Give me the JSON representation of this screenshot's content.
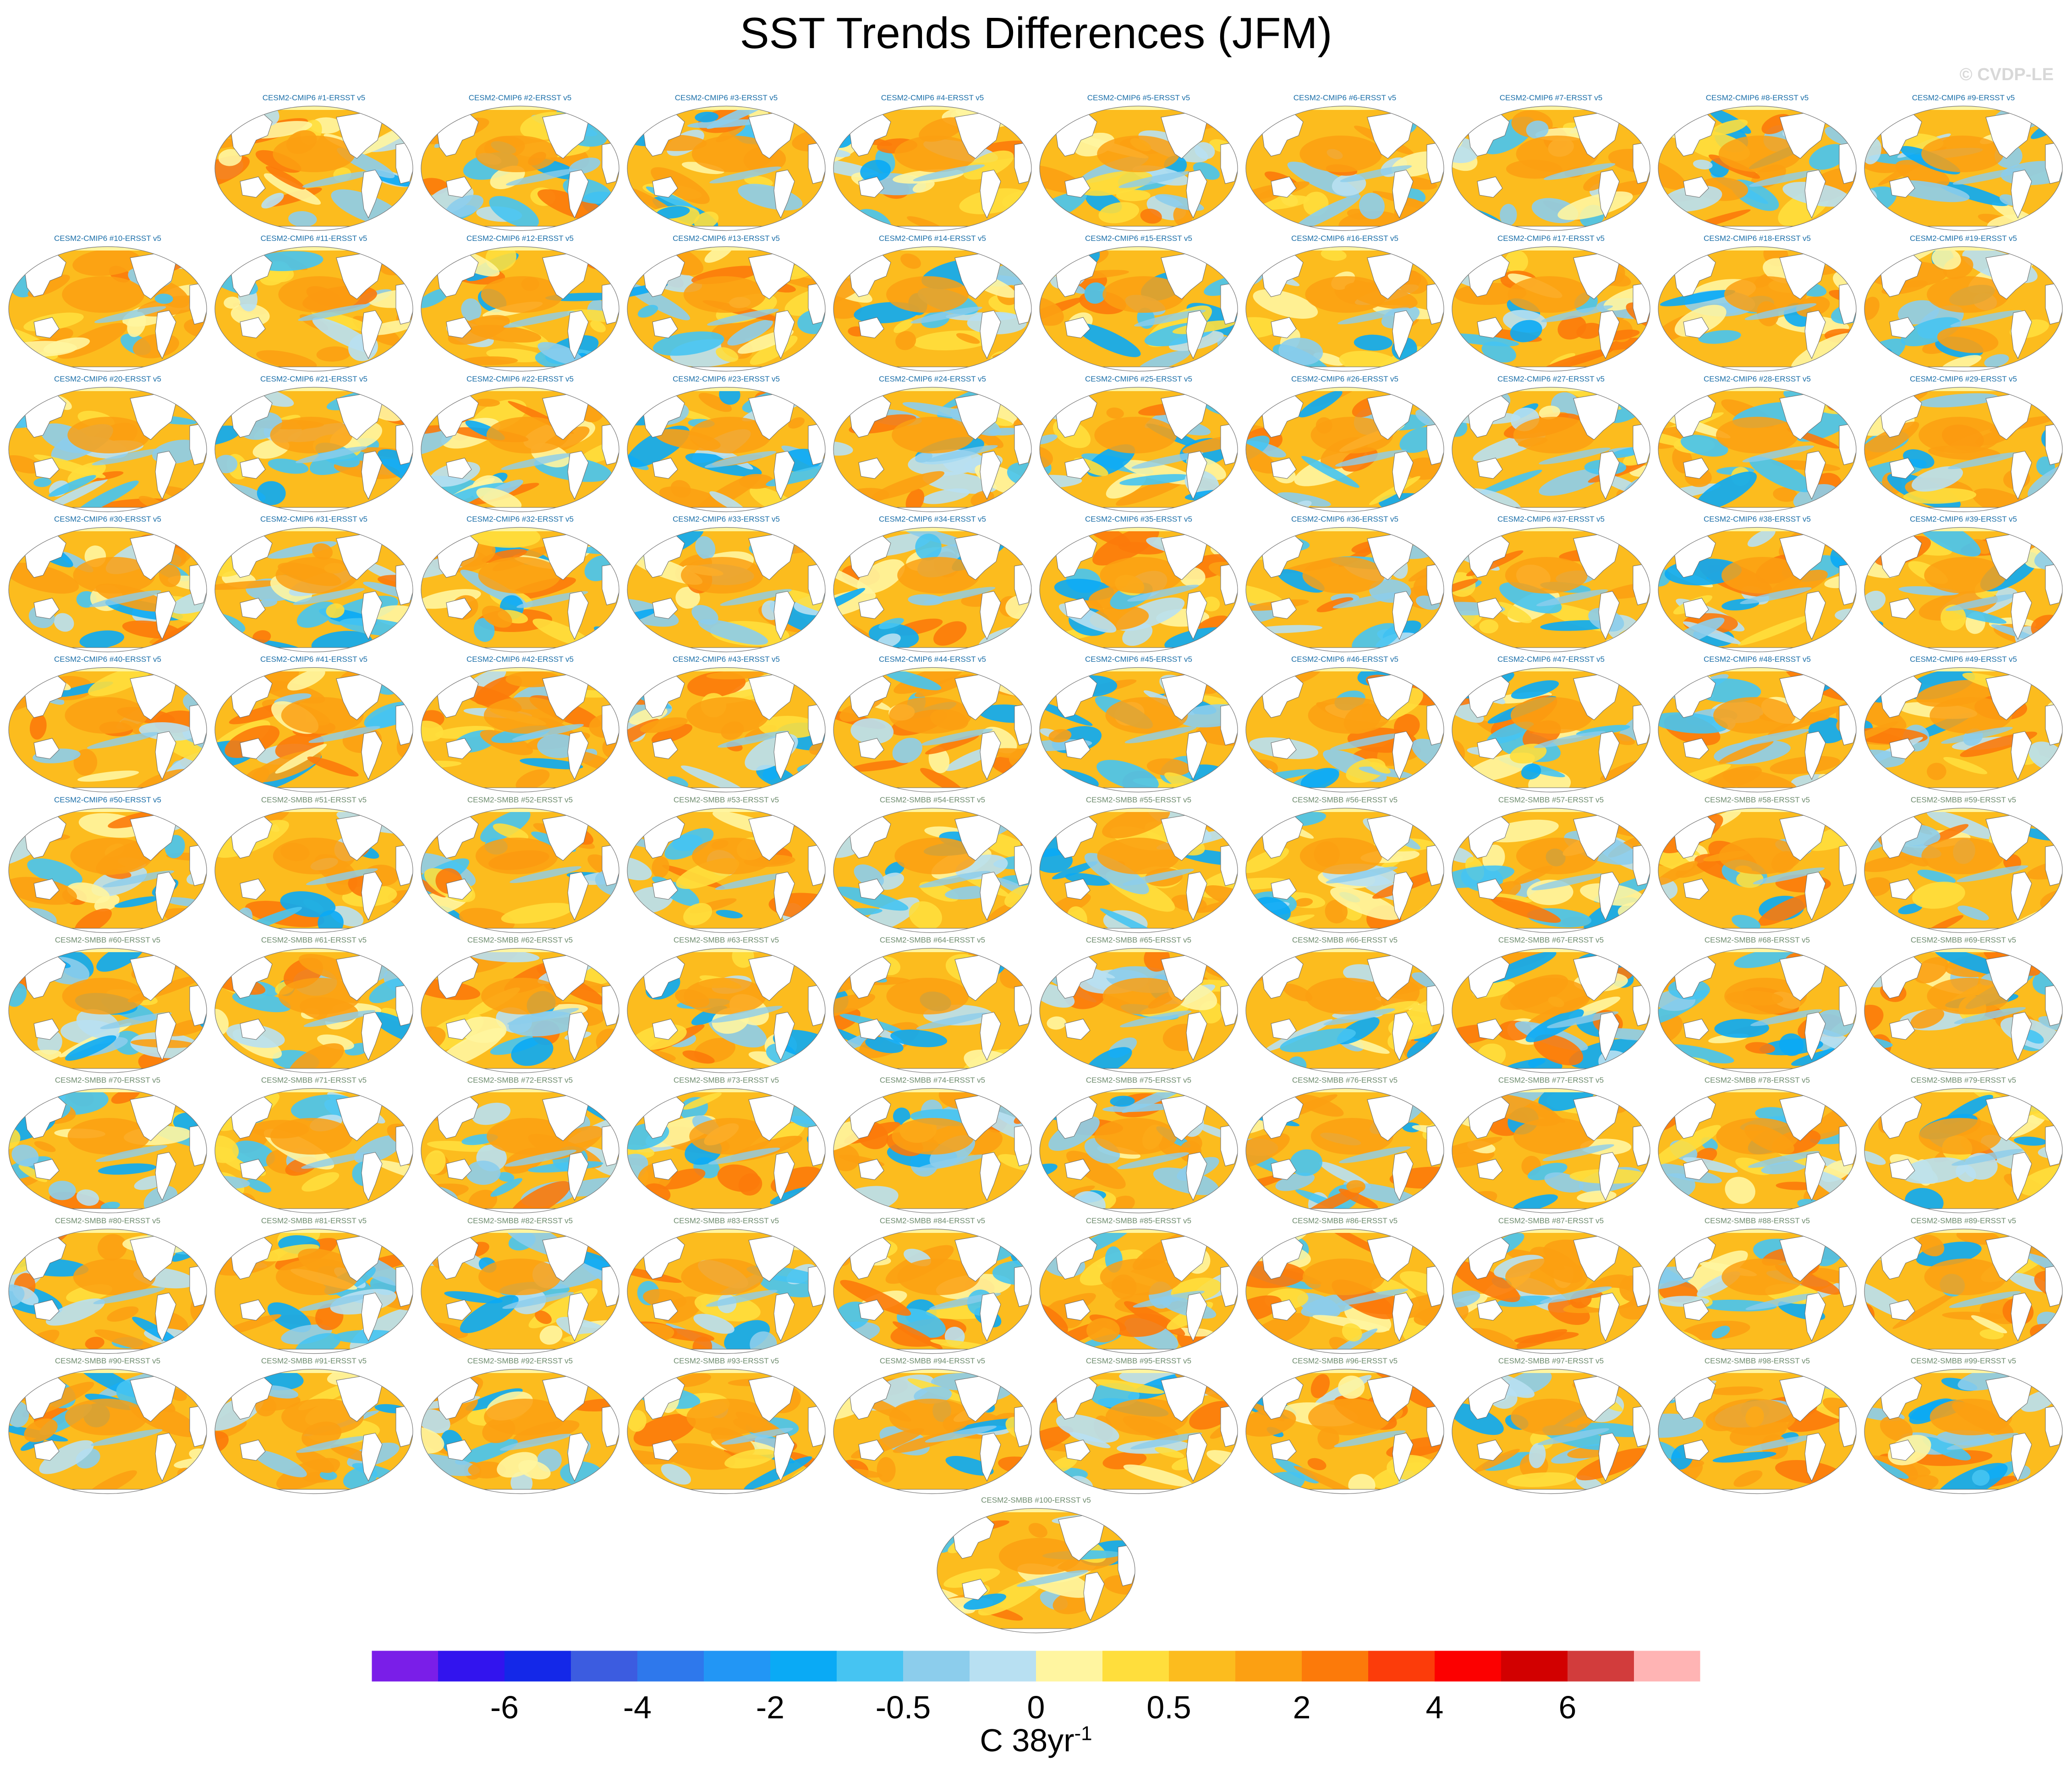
{
  "title": "SST Trends Differences (JFM)",
  "watermark": "© CVDP-LE",
  "chart_data": {
    "type": "heatmap",
    "map_projection": "Robinson (Pacific-centered)",
    "panel_count": 100,
    "panel_titles": [
      "CESM2-CMIP6 #1-ERSST v5",
      "CESM2-CMIP6 #2-ERSST v5",
      "CESM2-CMIP6 #3-ERSST v5",
      "CESM2-CMIP6 #4-ERSST v5",
      "CESM2-CMIP6 #5-ERSST v5",
      "CESM2-CMIP6 #6-ERSST v5",
      "CESM2-CMIP6 #7-ERSST v5",
      "CESM2-CMIP6 #8-ERSST v5",
      "CESM2-CMIP6 #9-ERSST v5",
      "CESM2-CMIP6 #10-ERSST v5",
      "CESM2-CMIP6 #11-ERSST v5",
      "CESM2-CMIP6 #12-ERSST v5",
      "CESM2-CMIP6 #13-ERSST v5",
      "CESM2-CMIP6 #14-ERSST v5",
      "CESM2-CMIP6 #15-ERSST v5",
      "CESM2-CMIP6 #16-ERSST v5",
      "CESM2-CMIP6 #17-ERSST v5",
      "CESM2-CMIP6 #18-ERSST v5",
      "CESM2-CMIP6 #19-ERSST v5",
      "CESM2-CMIP6 #20-ERSST v5",
      "CESM2-CMIP6 #21-ERSST v5",
      "CESM2-CMIP6 #22-ERSST v5",
      "CESM2-CMIP6 #23-ERSST v5",
      "CESM2-CMIP6 #24-ERSST v5",
      "CESM2-CMIP6 #25-ERSST v5",
      "CESM2-CMIP6 #26-ERSST v5",
      "CESM2-CMIP6 #27-ERSST v5",
      "CESM2-CMIP6 #28-ERSST v5",
      "CESM2-CMIP6 #29-ERSST v5",
      "CESM2-CMIP6 #30-ERSST v5",
      "CESM2-CMIP6 #31-ERSST v5",
      "CESM2-CMIP6 #32-ERSST v5",
      "CESM2-CMIP6 #33-ERSST v5",
      "CESM2-CMIP6 #34-ERSST v5",
      "CESM2-CMIP6 #35-ERSST v5",
      "CESM2-CMIP6 #36-ERSST v5",
      "CESM2-CMIP6 #37-ERSST v5",
      "CESM2-CMIP6 #38-ERSST v5",
      "CESM2-CMIP6 #39-ERSST v5",
      "CESM2-CMIP6 #40-ERSST v5",
      "CESM2-CMIP6 #41-ERSST v5",
      "CESM2-CMIP6 #42-ERSST v5",
      "CESM2-CMIP6 #43-ERSST v5",
      "CESM2-CMIP6 #44-ERSST v5",
      "CESM2-CMIP6 #45-ERSST v5",
      "CESM2-CMIP6 #46-ERSST v5",
      "CESM2-CMIP6 #47-ERSST v5",
      "CESM2-CMIP6 #48-ERSST v5",
      "CESM2-CMIP6 #49-ERSST v5",
      "CESM2-CMIP6 #50-ERSST v5",
      "CESM2-SMBB #51-ERSST v5",
      "CESM2-SMBB #52-ERSST v5",
      "CESM2-SMBB #53-ERSST v5",
      "CESM2-SMBB #54-ERSST v5",
      "CESM2-SMBB #55-ERSST v5",
      "CESM2-SMBB #56-ERSST v5",
      "CESM2-SMBB #57-ERSST v5",
      "CESM2-SMBB #58-ERSST v5",
      "CESM2-SMBB #59-ERSST v5",
      "CESM2-SMBB #60-ERSST v5",
      "CESM2-SMBB #61-ERSST v5",
      "CESM2-SMBB #62-ERSST v5",
      "CESM2-SMBB #63-ERSST v5",
      "CESM2-SMBB #64-ERSST v5",
      "CESM2-SMBB #65-ERSST v5",
      "CESM2-SMBB #66-ERSST v5",
      "CESM2-SMBB #67-ERSST v5",
      "CESM2-SMBB #68-ERSST v5",
      "CESM2-SMBB #69-ERSST v5",
      "CESM2-SMBB #70-ERSST v5",
      "CESM2-SMBB #71-ERSST v5",
      "CESM2-SMBB #72-ERSST v5",
      "CESM2-SMBB #73-ERSST v5",
      "CESM2-SMBB #74-ERSST v5",
      "CESM2-SMBB #75-ERSST v5",
      "CESM2-SMBB #76-ERSST v5",
      "CESM2-SMBB #77-ERSST v5",
      "CESM2-SMBB #78-ERSST v5",
      "CESM2-SMBB #79-ERSST v5",
      "CESM2-SMBB #80-ERSST v5",
      "CESM2-SMBB #81-ERSST v5",
      "CESM2-SMBB #82-ERSST v5",
      "CESM2-SMBB #83-ERSST v5",
      "CESM2-SMBB #84-ERSST v5",
      "CESM2-SMBB #85-ERSST v5",
      "CESM2-SMBB #86-ERSST v5",
      "CESM2-SMBB #87-ERSST v5",
      "CESM2-SMBB #88-ERSST v5",
      "CESM2-SMBB #89-ERSST v5",
      "CESM2-SMBB #90-ERSST v5",
      "CESM2-SMBB #91-ERSST v5",
      "CESM2-SMBB #92-ERSST v5",
      "CESM2-SMBB #93-ERSST v5",
      "CESM2-SMBB #94-ERSST v5",
      "CESM2-SMBB #95-ERSST v5",
      "CESM2-SMBB #96-ERSST v5",
      "CESM2-SMBB #97-ERSST v5",
      "CESM2-SMBB #98-ERSST v5",
      "CESM2-SMBB #99-ERSST v5",
      "CESM2-SMBB #100-ERSST v5"
    ],
    "panel_title_colors": {
      "CESM2-CMIP6": "#1a6ea8",
      "CESM2-SMBB": "#6e8c6e"
    },
    "colorbar": {
      "colors": [
        "#7a1ee8",
        "#3214ee",
        "#1428e8",
        "#3c5ce0",
        "#2e78ec",
        "#2296f5",
        "#0aaaf5",
        "#46c4f2",
        "#8ccdec",
        "#b8e0f2",
        "#fff5a0",
        "#ffde3c",
        "#fcbc1e",
        "#fca012",
        "#fc7a0a",
        "#fc3c0a",
        "#fc0000",
        "#d20000",
        "#d23c3c",
        "#ffb4b4"
      ],
      "tick_labels": [
        "-6",
        "-4",
        "-2",
        "-0.5",
        "0",
        "0.5",
        "2",
        "4",
        "6"
      ],
      "units": "C 38yr",
      "units_superscript": "-1"
    },
    "land_color": "#ffffff",
    "coast_color": "#666666"
  }
}
